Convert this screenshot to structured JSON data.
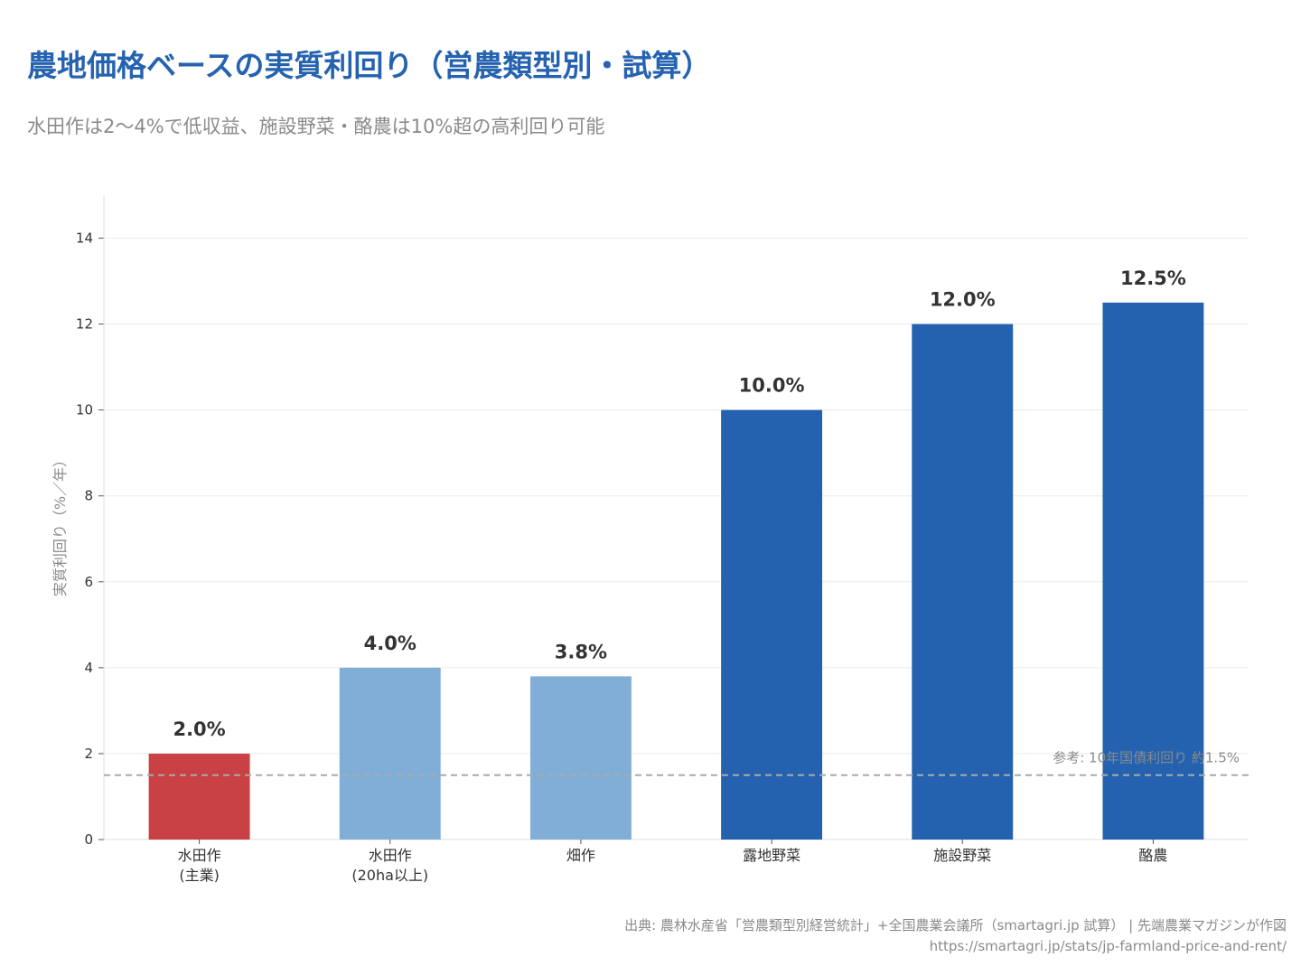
{
  "header": {
    "title": "農地価格ベースの実質利回り（営農類型別・試算）",
    "subtitle": "水田作は2〜4%で低収益、施設野菜・酪農は10%超の高利回り可能"
  },
  "footer": {
    "source": "出典: 農林水産省「営農類型別経営統計」+全国農業会議所（smartagri.jp 試算） | 先端農業マガジンが作図",
    "url": "https://smartagri.jp/stats/jp-farmland-price-and-rent/"
  },
  "chart_data": {
    "type": "bar",
    "categories": [
      [
        "水田作",
        "(主業)"
      ],
      [
        "水田作",
        "(20ha以上)"
      ],
      [
        "畑作"
      ],
      [
        "露地野菜"
      ],
      [
        "施設野菜"
      ],
      [
        "酪農"
      ]
    ],
    "values": [
      2.0,
      4.0,
      3.8,
      10.0,
      12.0,
      12.5
    ],
    "value_labels": [
      "2.0%",
      "4.0%",
      "3.8%",
      "10.0%",
      "12.0%",
      "12.5%"
    ],
    "bar_colors": [
      "#c94045",
      "#80aed6",
      "#80aed6",
      "#2462b0",
      "#2462b0",
      "#2462b0"
    ],
    "ylabel": "実質利回り（%／年）",
    "ylim": [
      0,
      15
    ],
    "yticks": [
      0,
      2,
      4,
      6,
      8,
      10,
      12,
      14
    ],
    "grid": true,
    "reference_line": {
      "value": 1.5,
      "label": "参考: 10年国債利回り 約1.5%",
      "color": "#aaaaaa",
      "style": "dashed"
    },
    "colors": {
      "title": "#2563b0",
      "grid": "#ececec",
      "axis": "#dddddd"
    }
  }
}
